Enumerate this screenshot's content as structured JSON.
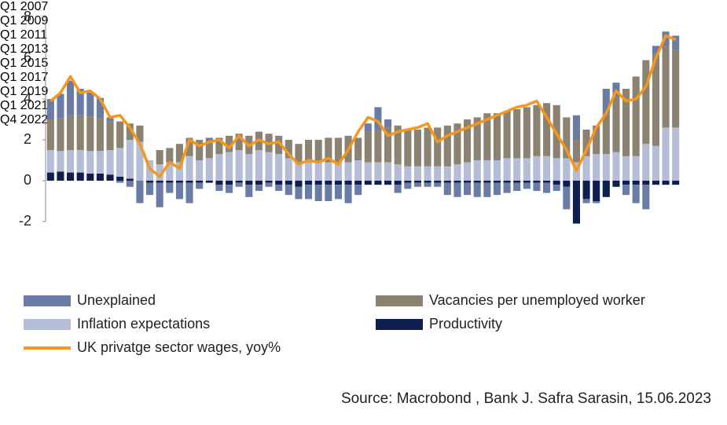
{
  "chart_data": {
    "type": "bar",
    "stacked": true,
    "categories": [
      "Q1 2007",
      null,
      null,
      null,
      null,
      null,
      null,
      null,
      "Q1 2009",
      null,
      null,
      null,
      null,
      null,
      null,
      null,
      "Q1 2011",
      null,
      null,
      null,
      null,
      null,
      null,
      null,
      "Q1 2013",
      null,
      null,
      null,
      null,
      null,
      null,
      null,
      "Q1 2015",
      null,
      null,
      null,
      null,
      null,
      null,
      null,
      "Q1 2017",
      null,
      null,
      null,
      null,
      null,
      null,
      null,
      "Q1 2019",
      null,
      null,
      null,
      null,
      null,
      null,
      null,
      "Q1 2021",
      null,
      null,
      null,
      null,
      null,
      null,
      "Q4 2022"
    ],
    "ylim": [
      -2,
      8
    ],
    "yticks": [
      -2,
      0,
      2,
      4,
      6,
      8
    ],
    "grid": false,
    "series": [
      {
        "name": "Unexplained",
        "color": "#6a7ca6",
        "values": [
          1.0,
          1.2,
          1.7,
          1.3,
          1.2,
          1.0,
          0.2,
          -0.1,
          -0.3,
          -1.1,
          -0.6,
          -1.2,
          -0.5,
          -0.8,
          -1.0,
          -0.3,
          0.1,
          -0.3,
          -0.4,
          -0.2,
          -0.6,
          -0.3,
          -0.2,
          -0.3,
          -0.5,
          -0.6,
          -0.7,
          -0.8,
          -0.8,
          -0.7,
          -0.9,
          -0.5,
          0.4,
          1.1,
          0.4,
          -0.4,
          -0.3,
          -0.2,
          -0.2,
          -0.2,
          -0.6,
          -0.7,
          -0.6,
          -0.7,
          -0.7,
          -0.6,
          -0.5,
          -0.4,
          -0.3,
          -0.4,
          -0.5,
          -0.3,
          -1.1,
          1.2,
          -0.2,
          -0.1,
          1.2,
          0.7,
          -0.5,
          -0.9,
          -1.2,
          0.4,
          0.7,
          0.7
        ]
      },
      {
        "name": "Vacancies per unemployed worker",
        "color": "#8b8272",
        "values": [
          1.5,
          1.6,
          1.7,
          1.7,
          1.7,
          1.6,
          1.4,
          1.3,
          0.8,
          0.8,
          0,
          0.7,
          0.7,
          0.9,
          0.9,
          1.0,
          0.9,
          0.8,
          0.8,
          0.8,
          0.9,
          0.9,
          0.9,
          0.9,
          0.9,
          0.9,
          1.1,
          1.1,
          1.2,
          1.2,
          1.3,
          1.1,
          1.5,
          1.6,
          1.7,
          1.9,
          1.8,
          1.8,
          1.9,
          1.9,
          2.0,
          2.0,
          2.1,
          2.1,
          2.3,
          2.3,
          2.3,
          2.4,
          2.5,
          2.5,
          2.6,
          2.6,
          2.0,
          1.1,
          1.3,
          1.4,
          2.0,
          2.7,
          3.3,
          3.9,
          4.1,
          4.5,
          4.0,
          3.8
        ]
      },
      {
        "name": "Inflation expectations",
        "color": "#b5bdd6",
        "values": [
          1.1,
          1.0,
          1.1,
          1.1,
          1.1,
          1.1,
          1.2,
          1.4,
          1.9,
          1.9,
          1.0,
          0.8,
          0.9,
          0.9,
          1.2,
          1.0,
          1.1,
          1.3,
          1.4,
          1.5,
          1.3,
          1.5,
          1.4,
          1.3,
          1.1,
          0.9,
          0.9,
          0.9,
          0.9,
          0.9,
          0.9,
          1.0,
          0.9,
          0.9,
          0.9,
          0.8,
          0.7,
          0.7,
          0.7,
          0.7,
          0.7,
          0.8,
          0.9,
          1.0,
          1.0,
          1.0,
          1.1,
          1.1,
          1.1,
          1.2,
          1.2,
          1.1,
          1.1,
          0.9,
          1.2,
          1.3,
          1.3,
          1.4,
          1.2,
          1.2,
          1.8,
          1.7,
          2.6,
          2.6
        ]
      },
      {
        "name": "Productivity",
        "color": "#0e1f4f",
        "values": [
          0.4,
          0.45,
          0.4,
          0.4,
          0.35,
          0.35,
          0.3,
          0.2,
          0.1,
          0,
          -0.1,
          -0.1,
          -0.1,
          -0.1,
          -0.1,
          -0.1,
          -0.1,
          -0.2,
          -0.2,
          -0.1,
          -0.2,
          -0.2,
          -0.1,
          -0.2,
          -0.2,
          -0.3,
          -0.2,
          -0.2,
          -0.2,
          -0.2,
          -0.2,
          -0.2,
          -0.2,
          -0.2,
          -0.2,
          -0.2,
          -0.1,
          -0.1,
          -0.1,
          -0.1,
          -0.1,
          -0.1,
          -0.1,
          -0.1,
          -0.1,
          -0.1,
          -0.1,
          -0.1,
          -0.1,
          -0.1,
          -0.1,
          -0.2,
          -0.3,
          -2.1,
          -0.9,
          -1.0,
          -0.8,
          -0.3,
          -0.2,
          -0.2,
          -0.2,
          -0.2,
          -0.2,
          -0.2
        ]
      },
      {
        "name": "UK privatge sector wages, yoy%",
        "type": "line",
        "color": "#f5961e",
        "values": [
          3.9,
          4.3,
          5.1,
          4.3,
          4.4,
          4.0,
          3.1,
          3.2,
          2.6,
          1.8,
          0.6,
          0.2,
          0.9,
          0.6,
          2.0,
          1.7,
          1.9,
          2.0,
          1.6,
          2.2,
          1.7,
          2.0,
          1.8,
          1.9,
          1.3,
          0.8,
          1.0,
          0.9,
          1.1,
          0.8,
          1.5,
          2.4,
          3.1,
          2.9,
          2.2,
          2.4,
          2.5,
          2.6,
          2.8,
          1.9,
          2.2,
          2.4,
          2.6,
          2.8,
          3.0,
          3.2,
          3.4,
          3.6,
          3.7,
          3.9,
          3.1,
          2.3,
          1.5,
          0.5,
          1.5,
          2.6,
          3.3,
          4.4,
          3.9,
          4.0,
          4.6,
          6.0,
          7.1,
          6.9
        ]
      }
    ],
    "source": "Source: Macrobond , Bank J. Safra Sarasin, 15.06.2023"
  }
}
